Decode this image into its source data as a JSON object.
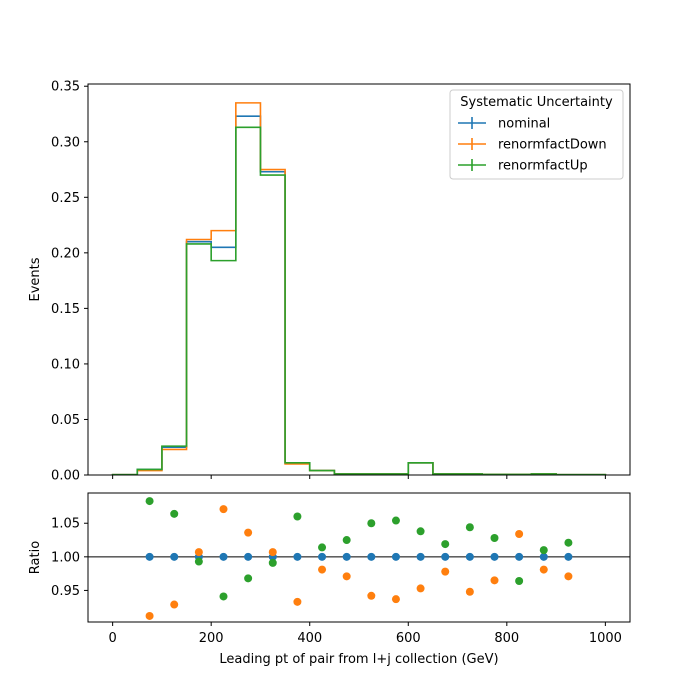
{
  "chart_data": {
    "type": "step-histogram-with-ratio",
    "colors": {
      "nominal": "#1f77b4",
      "renormfactDown": "#ff7f0e",
      "renormfactUp": "#2ca02c",
      "axis": "#000000",
      "reference_line": "#000000"
    },
    "xlabel": "Leading pt of pair from l+j collection (GeV)",
    "top_panel": {
      "ylabel": "Events",
      "xlim": [
        -50,
        1050
      ],
      "ylim": [
        0,
        0.352
      ],
      "yticks": [
        0.0,
        0.05,
        0.1,
        0.15,
        0.2,
        0.25,
        0.3,
        0.35
      ],
      "ytick_labels": [
        "0.00",
        "0.05",
        "0.10",
        "0.15",
        "0.20",
        "0.25",
        "0.30",
        "0.35"
      ],
      "bin_edges": [
        0,
        50,
        100,
        150,
        200,
        250,
        300,
        350,
        400,
        450,
        500,
        550,
        600,
        650,
        700,
        750,
        800,
        850,
        900,
        950,
        1000
      ],
      "series": [
        {
          "name": "nominal",
          "values": [
            0.0003,
            0.005,
            0.025,
            0.21,
            0.205,
            0.323,
            0.273,
            0.011,
            0.004,
            0.001,
            0.001,
            0.001,
            0.011,
            0.001,
            0.001,
            0.0005,
            0.0005,
            0.001,
            0.0003,
            0.0003
          ]
        },
        {
          "name": "renormfactDown",
          "values": [
            0.0003,
            0.004,
            0.023,
            0.212,
            0.22,
            0.335,
            0.275,
            0.01,
            0.004,
            0.001,
            0.001,
            0.001,
            0.011,
            0.001,
            0.001,
            0.0005,
            0.0005,
            0.001,
            0.0003,
            0.0003
          ]
        },
        {
          "name": "renormfactUp",
          "values": [
            0.0003,
            0.005,
            0.026,
            0.208,
            0.193,
            0.313,
            0.27,
            0.011,
            0.004,
            0.001,
            0.001,
            0.001,
            0.011,
            0.001,
            0.001,
            0.0005,
            0.0005,
            0.001,
            0.0003,
            0.0003
          ]
        }
      ],
      "legend": {
        "title": "Systematic Uncertainty",
        "placement": "top-right",
        "entries": [
          "nominal",
          "renormfactDown",
          "renormfactUp"
        ]
      }
    },
    "bottom_panel": {
      "ylabel": "Ratio",
      "xlim": [
        -50,
        1050
      ],
      "ylim": [
        0.903,
        1.095
      ],
      "yticks": [
        0.95,
        1.0,
        1.05
      ],
      "ytick_labels": [
        "0.95",
        "1.00",
        "1.05"
      ],
      "xticks": [
        0,
        200,
        400,
        600,
        800,
        1000
      ],
      "xtick_labels": [
        "0",
        "200",
        "400",
        "600",
        "800",
        "1000"
      ],
      "reference_line": 1.0,
      "x": [
        75,
        125,
        175,
        225,
        275,
        325,
        375,
        425,
        475,
        525,
        575,
        625,
        675,
        725,
        775,
        825,
        875,
        925
      ],
      "series": [
        {
          "name": "nominal",
          "values": [
            1.0,
            1.0,
            1.0,
            1.0,
            1.0,
            1.0,
            1.0,
            1.0,
            1.0,
            1.0,
            1.0,
            1.0,
            1.0,
            1.0,
            1.0,
            1.0,
            1.0,
            1.0
          ]
        },
        {
          "name": "renormfactDown",
          "values": [
            0.912,
            0.929,
            1.007,
            1.071,
            1.036,
            1.007,
            0.933,
            0.981,
            0.971,
            0.942,
            0.937,
            0.953,
            0.978,
            0.948,
            0.965,
            1.034,
            0.981,
            0.971
          ]
        },
        {
          "name": "renormfactUp",
          "values": [
            1.083,
            1.064,
            0.993,
            0.941,
            0.968,
            0.991,
            1.06,
            1.014,
            1.025,
            1.05,
            1.054,
            1.038,
            1.019,
            1.044,
            1.028,
            0.964,
            1.01,
            1.021
          ]
        }
      ]
    }
  }
}
